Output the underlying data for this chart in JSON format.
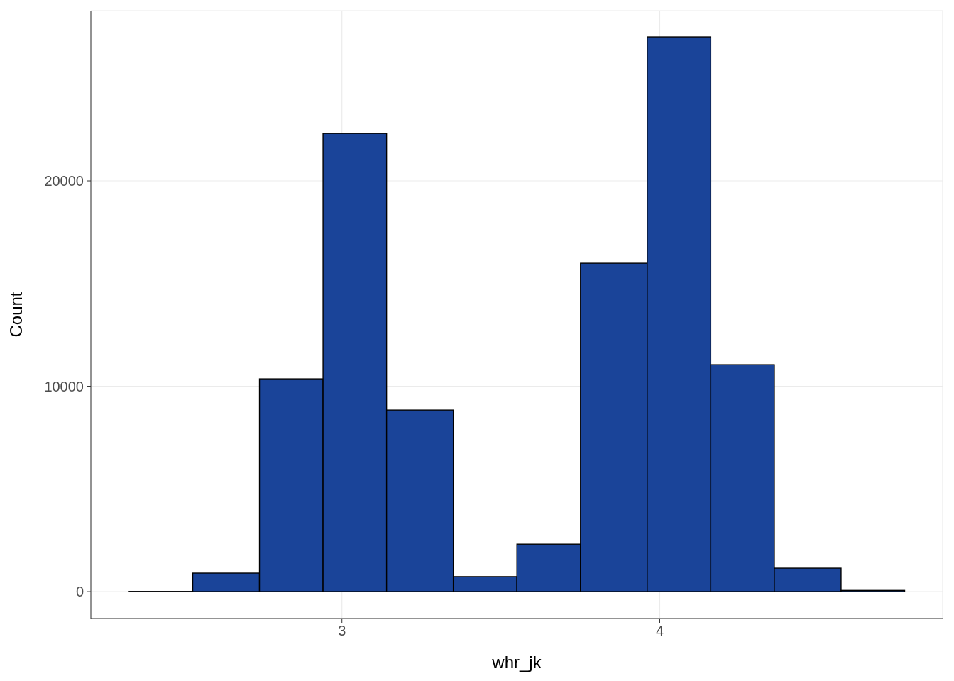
{
  "chart_data": {
    "type": "histogram",
    "xlabel": "whr_jk",
    "ylabel": "Count",
    "bins": [
      2.33,
      2.53,
      2.74,
      2.94,
      3.14,
      3.35,
      3.55,
      3.75,
      3.96,
      4.16,
      4.36,
      4.57,
      4.77
    ],
    "values": [
      10,
      900,
      10360,
      22310,
      8840,
      730,
      2310,
      15990,
      27010,
      11050,
      1140,
      60
    ],
    "color": "#1a4499",
    "xlim": [
      2.21,
      4.89
    ],
    "xticks": [
      3,
      4
    ],
    "ylim": [
      -1310,
      28290
    ],
    "yticks": [
      0,
      10000,
      20000
    ],
    "grid": true
  }
}
